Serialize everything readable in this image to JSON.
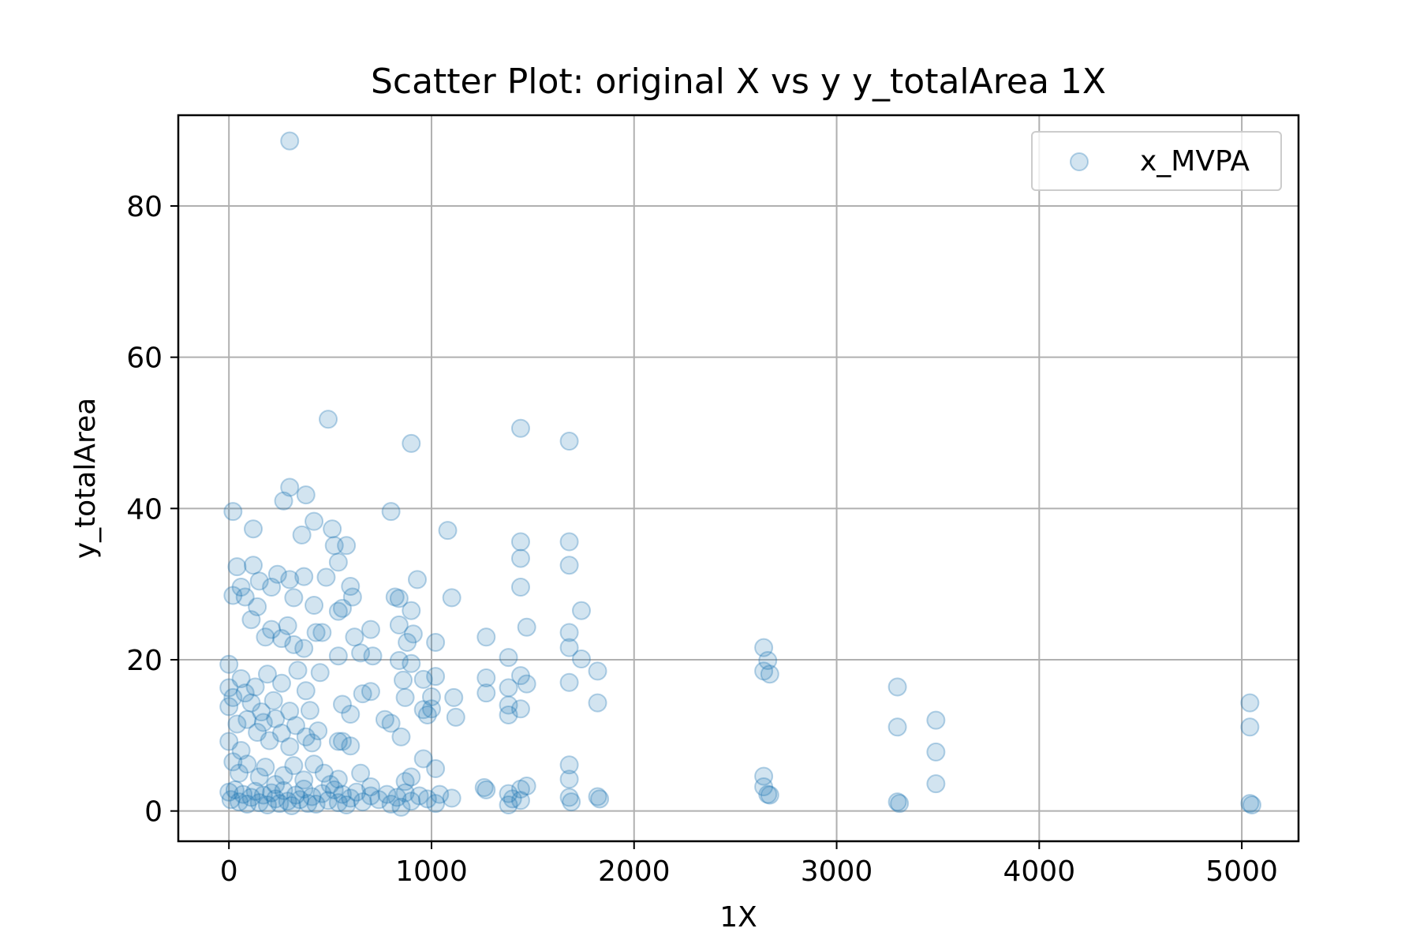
{
  "chart_data": {
    "type": "scatter",
    "title": "Scatter Plot: original X vs y y_totalArea 1X",
    "xlabel": "1X",
    "ylabel": "y_totalArea",
    "xlim": [
      -250,
      5280
    ],
    "ylim": [
      -4,
      92
    ],
    "xticks": [
      0,
      1000,
      2000,
      3000,
      4000,
      5000
    ],
    "yticks": [
      0,
      20,
      40,
      60,
      80
    ],
    "grid": true,
    "legend": "top-right",
    "series": [
      {
        "name": "x_MVPA",
        "color": "#1f77b4",
        "alpha": 0.2,
        "points": [
          [
            300,
            88.6
          ],
          [
            490,
            51.8
          ],
          [
            900,
            48.6
          ],
          [
            1440,
            50.6
          ],
          [
            1680,
            48.9
          ],
          [
            20,
            39.6
          ],
          [
            120,
            37.3
          ],
          [
            270,
            41.0
          ],
          [
            300,
            42.8
          ],
          [
            380,
            41.8
          ],
          [
            360,
            36.5
          ],
          [
            420,
            38.3
          ],
          [
            510,
            37.3
          ],
          [
            520,
            35.1
          ],
          [
            580,
            35.1
          ],
          [
            800,
            39.6
          ],
          [
            1080,
            37.1
          ],
          [
            1440,
            35.6
          ],
          [
            1680,
            35.6
          ],
          [
            40,
            32.3
          ],
          [
            120,
            32.5
          ],
          [
            60,
            29.6
          ],
          [
            80,
            28.3
          ],
          [
            20,
            28.5
          ],
          [
            140,
            27.0
          ],
          [
            150,
            30.4
          ],
          [
            210,
            29.6
          ],
          [
            240,
            31.3
          ],
          [
            300,
            30.6
          ],
          [
            320,
            28.2
          ],
          [
            370,
            31.0
          ],
          [
            420,
            27.2
          ],
          [
            480,
            30.9
          ],
          [
            540,
            32.9
          ],
          [
            600,
            29.7
          ],
          [
            610,
            28.3
          ],
          [
            540,
            26.4
          ],
          [
            560,
            26.8
          ],
          [
            820,
            28.3
          ],
          [
            840,
            28.1
          ],
          [
            900,
            26.5
          ],
          [
            930,
            30.6
          ],
          [
            1100,
            28.2
          ],
          [
            1440,
            33.4
          ],
          [
            1440,
            29.6
          ],
          [
            1680,
            32.5
          ],
          [
            1740,
            26.5
          ],
          [
            110,
            25.3
          ],
          [
            180,
            23.0
          ],
          [
            210,
            24.0
          ],
          [
            260,
            22.8
          ],
          [
            290,
            24.5
          ],
          [
            320,
            22.0
          ],
          [
            370,
            21.5
          ],
          [
            430,
            23.6
          ],
          [
            460,
            23.6
          ],
          [
            540,
            20.5
          ],
          [
            620,
            23.0
          ],
          [
            650,
            20.9
          ],
          [
            700,
            24.0
          ],
          [
            710,
            20.5
          ],
          [
            840,
            24.6
          ],
          [
            880,
            22.3
          ],
          [
            910,
            23.4
          ],
          [
            1020,
            22.3
          ],
          [
            1270,
            23.0
          ],
          [
            1380,
            20.3
          ],
          [
            1470,
            24.3
          ],
          [
            1680,
            23.6
          ],
          [
            1680,
            21.6
          ],
          [
            1740,
            20.1
          ],
          [
            2640,
            21.6
          ],
          [
            2660,
            19.9
          ],
          [
            0,
            19.4
          ],
          [
            0,
            16.3
          ],
          [
            20,
            15.0
          ],
          [
            0,
            13.8
          ],
          [
            60,
            17.5
          ],
          [
            80,
            15.6
          ],
          [
            110,
            14.3
          ],
          [
            130,
            16.4
          ],
          [
            160,
            13.1
          ],
          [
            190,
            18.1
          ],
          [
            220,
            14.6
          ],
          [
            260,
            16.9
          ],
          [
            300,
            13.2
          ],
          [
            340,
            18.6
          ],
          [
            380,
            15.9
          ],
          [
            400,
            13.3
          ],
          [
            450,
            18.3
          ],
          [
            560,
            14.1
          ],
          [
            600,
            12.8
          ],
          [
            660,
            15.5
          ],
          [
            700,
            15.8
          ],
          [
            840,
            19.9
          ],
          [
            870,
            15.0
          ],
          [
            860,
            17.3
          ],
          [
            900,
            19.5
          ],
          [
            960,
            17.4
          ],
          [
            1000,
            15.1
          ],
          [
            1020,
            17.8
          ],
          [
            1110,
            15.0
          ],
          [
            1270,
            17.6
          ],
          [
            1270,
            15.6
          ],
          [
            1380,
            16.3
          ],
          [
            1380,
            14.0
          ],
          [
            1440,
            17.9
          ],
          [
            1440,
            13.5
          ],
          [
            1470,
            16.8
          ],
          [
            1680,
            17.0
          ],
          [
            1820,
            18.5
          ],
          [
            1820,
            14.3
          ],
          [
            2640,
            18.5
          ],
          [
            2670,
            18.1
          ],
          [
            3300,
            16.4
          ],
          [
            0,
            9.2
          ],
          [
            40,
            11.5
          ],
          [
            60,
            8.0
          ],
          [
            90,
            12.1
          ],
          [
            140,
            10.4
          ],
          [
            170,
            11.7
          ],
          [
            200,
            9.3
          ],
          [
            230,
            12.2
          ],
          [
            260,
            10.3
          ],
          [
            300,
            8.5
          ],
          [
            330,
            11.3
          ],
          [
            380,
            9.8
          ],
          [
            410,
            9.0
          ],
          [
            440,
            10.6
          ],
          [
            540,
            9.2
          ],
          [
            560,
            9.2
          ],
          [
            600,
            8.6
          ],
          [
            770,
            12.1
          ],
          [
            800,
            11.6
          ],
          [
            850,
            9.8
          ],
          [
            960,
            13.4
          ],
          [
            980,
            12.7
          ],
          [
            1000,
            13.5
          ],
          [
            1120,
            12.4
          ],
          [
            1380,
            12.7
          ],
          [
            3300,
            11.1
          ],
          [
            3490,
            12.0
          ],
          [
            3490,
            7.8
          ],
          [
            5040,
            14.3
          ],
          [
            5040,
            11.1
          ],
          [
            20,
            6.5
          ],
          [
            50,
            5.0
          ],
          [
            90,
            6.2
          ],
          [
            150,
            4.5
          ],
          [
            180,
            5.8
          ],
          [
            230,
            3.5
          ],
          [
            270,
            4.7
          ],
          [
            320,
            6.0
          ],
          [
            370,
            4.1
          ],
          [
            420,
            6.2
          ],
          [
            470,
            5.0
          ],
          [
            500,
            3.5
          ],
          [
            540,
            4.2
          ],
          [
            650,
            5.0
          ],
          [
            700,
            3.2
          ],
          [
            870,
            3.9
          ],
          [
            900,
            4.5
          ],
          [
            960,
            6.9
          ],
          [
            1020,
            5.6
          ],
          [
            1680,
            6.1
          ],
          [
            1680,
            4.2
          ],
          [
            2640,
            4.6
          ],
          [
            3490,
            3.6
          ],
          [
            0,
            2.5
          ],
          [
            10,
            1.5
          ],
          [
            30,
            2.8
          ],
          [
            50,
            1.2
          ],
          [
            70,
            2.2
          ],
          [
            90,
            0.9
          ],
          [
            110,
            1.8
          ],
          [
            130,
            2.6
          ],
          [
            150,
            1.1
          ],
          [
            170,
            2.1
          ],
          [
            190,
            0.8
          ],
          [
            210,
            2.4
          ],
          [
            230,
            1.6
          ],
          [
            250,
            1.0
          ],
          [
            270,
            2.7
          ],
          [
            290,
            1.3
          ],
          [
            310,
            0.7
          ],
          [
            330,
            2.1
          ],
          [
            350,
            1.5
          ],
          [
            370,
            2.9
          ],
          [
            390,
            1.0
          ],
          [
            410,
            1.9
          ],
          [
            430,
            0.9
          ],
          [
            460,
            2.3
          ],
          [
            490,
            1.4
          ],
          [
            520,
            2.8
          ],
          [
            540,
            1.1
          ],
          [
            560,
            2.2
          ],
          [
            580,
            0.8
          ],
          [
            600,
            1.7
          ],
          [
            630,
            2.5
          ],
          [
            660,
            1.2
          ],
          [
            700,
            2.0
          ],
          [
            740,
            1.5
          ],
          [
            780,
            2.2
          ],
          [
            800,
            0.9
          ],
          [
            830,
            1.8
          ],
          [
            850,
            0.5
          ],
          [
            870,
            2.4
          ],
          [
            900,
            1.3
          ],
          [
            940,
            2.0
          ],
          [
            980,
            1.6
          ],
          [
            1020,
            1.0
          ],
          [
            1040,
            2.2
          ],
          [
            1100,
            1.7
          ],
          [
            1260,
            3.1
          ],
          [
            1270,
            2.8
          ],
          [
            1380,
            2.3
          ],
          [
            1380,
            0.8
          ],
          [
            1400,
            1.6
          ],
          [
            1440,
            2.9
          ],
          [
            1440,
            1.4
          ],
          [
            1470,
            3.3
          ],
          [
            1680,
            1.8
          ],
          [
            1690,
            1.2
          ],
          [
            1820,
            1.9
          ],
          [
            1830,
            1.6
          ],
          [
            2640,
            3.2
          ],
          [
            2660,
            2.2
          ],
          [
            2670,
            2.1
          ],
          [
            3300,
            1.2
          ],
          [
            3310,
            1.0
          ],
          [
            5040,
            1.0
          ],
          [
            5050,
            0.8
          ]
        ]
      }
    ]
  }
}
